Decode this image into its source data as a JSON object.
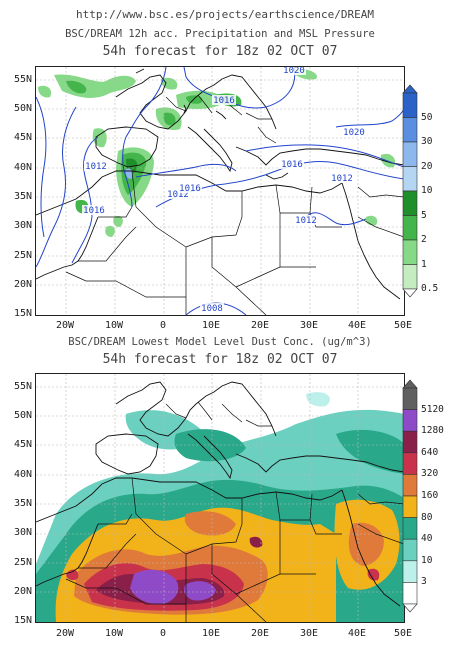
{
  "header": {
    "url": "http://www.bsc.es/projects/earthscience/DREAM"
  },
  "top_map": {
    "title": "BSC/DREAM 12h acc. Precipitation and MSL Pressure",
    "subtitle": "54h forecast for 18z 02 OCT 07",
    "isobar_labels": [
      "1020",
      "1016",
      "1020",
      "1012",
      "1016",
      "1016",
      "1012",
      "1012",
      "1016",
      "1012",
      "1008"
    ],
    "colorbar": {
      "labels": [
        "50",
        "30",
        "20",
        "10",
        "5",
        "2",
        "1",
        "0.5"
      ],
      "colors": [
        "#2a62c8",
        "#5a8ee0",
        "#8cb8ee",
        "#b4d6f2",
        "#1f8f2a",
        "#44b54a",
        "#86d986",
        "#c4ecc0"
      ]
    }
  },
  "bottom_map": {
    "title": "BSC/DREAM Lowest Model Level Dust Conc. (ug/m^3)",
    "subtitle": "54h forecast for 18z 02 OCT 07",
    "colorbar": {
      "labels": [
        "5120",
        "1280",
        "640",
        "320",
        "160",
        "80",
        "40",
        "10",
        "3"
      ],
      "colors": [
        "#606060",
        "#8f4ac8",
        "#8a1f4a",
        "#c8324a",
        "#e07a3a",
        "#f2b21a",
        "#2aa88a",
        "#6cd0c0",
        "#bdf0ea",
        "#ffffff"
      ]
    }
  },
  "axes": {
    "lat_labels": [
      "55N",
      "50N",
      "45N",
      "40N",
      "35N",
      "30N",
      "25N",
      "20N",
      "15N"
    ],
    "lon_labels": [
      "20W",
      "10W",
      "0",
      "10E",
      "20E",
      "30E",
      "40E",
      "50E"
    ]
  }
}
